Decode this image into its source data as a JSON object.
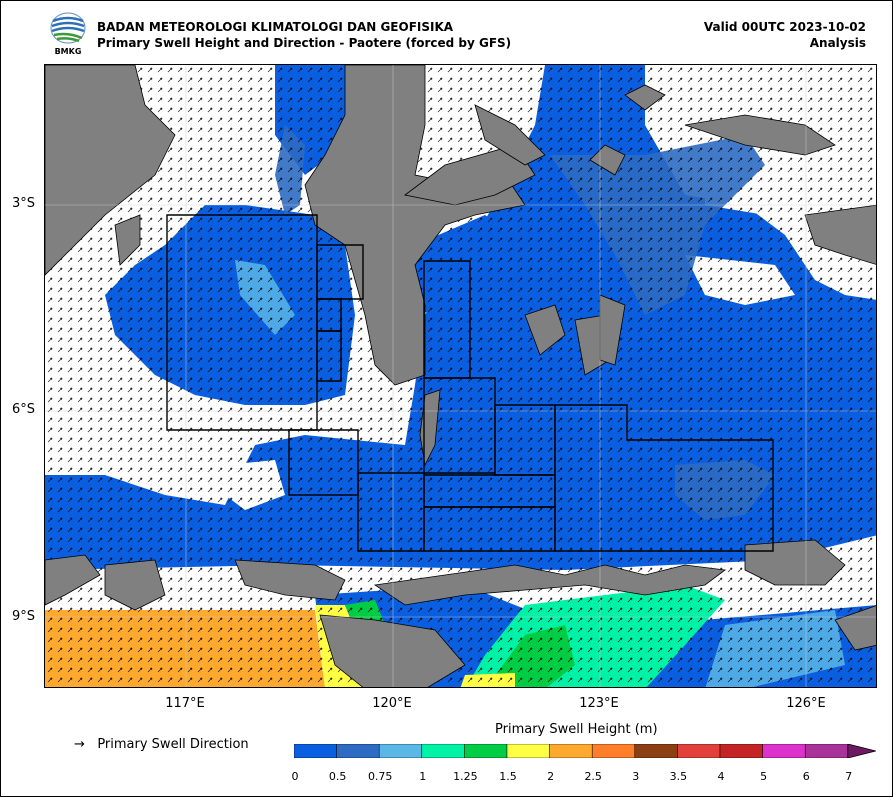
{
  "logo": {
    "icon": "bmkg-logo-icon",
    "text": "BMKG"
  },
  "header": {
    "agency": "BADAN METEOROLOGI KLIMATOLOGI DAN GEOFISIKA",
    "product": "Primary Swell Height and Direction - Paotere (forced by GFS)",
    "valid": "Valid 00UTC 2023-10-02",
    "mode": "Analysis"
  },
  "map": {
    "lat_ticks": [
      "3°S",
      "6°S",
      "9°S"
    ],
    "lon_ticks": [
      "117°E",
      "120°E",
      "123°E",
      "126°E"
    ],
    "colors": {
      "land": "#808080",
      "swell_low": "#0a5ee0",
      "swell_mid": "#2e6cc4",
      "ocean_nodata": "#ffffff"
    }
  },
  "legend": {
    "direction_symbol": "→",
    "direction_label": "Primary Swell Direction",
    "colorbar_title": "Primary Swell Height (m)",
    "colorbar_labels": [
      "0",
      "0.5",
      "0.75",
      "1",
      "1.25",
      "1.5",
      "2",
      "2.5",
      "3",
      "3.5",
      "4",
      "5",
      "6",
      "7"
    ],
    "colorbar_colors": [
      "#0a5ee0",
      "#2e6cc4",
      "#5bb7e6",
      "#00f2a6",
      "#00cc44",
      "#ffff44",
      "#ffaa2e",
      "#ff7e2a",
      "#8b3f12",
      "#e2403a",
      "#c42426",
      "#dd33cc",
      "#aa3399",
      "#6e1a63"
    ]
  }
}
